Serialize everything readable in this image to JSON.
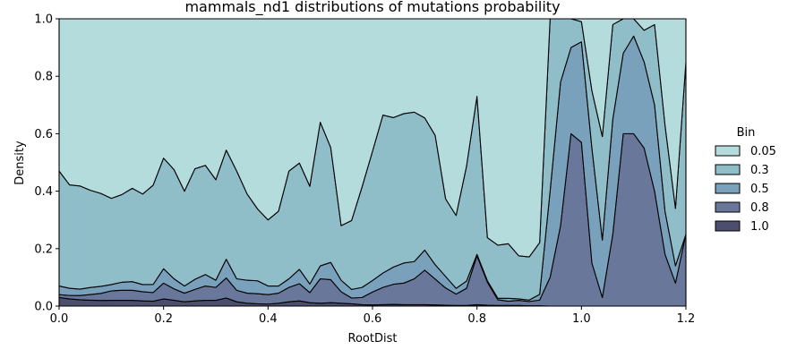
{
  "chart_data": {
    "type": "area",
    "stacked": "fill",
    "title": "mammals_nd1 distributions of mutations probability",
    "xlabel": "RootDist",
    "ylabel": "Density",
    "xlim": [
      0.0,
      1.2
    ],
    "ylim": [
      0.0,
      1.0
    ],
    "xticks": [
      "0.0",
      "0.2",
      "0.4",
      "0.6",
      "0.8",
      "1.0",
      "1.2"
    ],
    "yticks": [
      "0.0",
      "0.2",
      "0.4",
      "0.6",
      "0.8",
      "1.0"
    ],
    "grid": false,
    "legend": {
      "title": "Bin",
      "position": "right"
    },
    "x": [
      0.0,
      0.02,
      0.04,
      0.06,
      0.08,
      0.1,
      0.12,
      0.14,
      0.16,
      0.18,
      0.2,
      0.22,
      0.24,
      0.26,
      0.28,
      0.3,
      0.32,
      0.34,
      0.36,
      0.38,
      0.4,
      0.42,
      0.44,
      0.46,
      0.48,
      0.5,
      0.52,
      0.54,
      0.56,
      0.58,
      0.6,
      0.62,
      0.64,
      0.66,
      0.68,
      0.7,
      0.72,
      0.74,
      0.76,
      0.78,
      0.8,
      0.82,
      0.84,
      0.86,
      0.88,
      0.9,
      0.92,
      0.94,
      0.96,
      0.98,
      1.0,
      1.02,
      1.04,
      1.06,
      1.08,
      1.1,
      1.12,
      1.14,
      1.16,
      1.18,
      1.2
    ],
    "series": [
      {
        "name": "1.0",
        "color": "#4b4f6d",
        "values": [
          0.03,
          0.025,
          0.022,
          0.021,
          0.02,
          0.02,
          0.02,
          0.02,
          0.018,
          0.017,
          0.025,
          0.02,
          0.015,
          0.018,
          0.02,
          0.02,
          0.028,
          0.015,
          0.01,
          0.008,
          0.007,
          0.01,
          0.015,
          0.018,
          0.012,
          0.01,
          0.012,
          0.01,
          0.008,
          0.005,
          0.004,
          0.005,
          0.006,
          0.005,
          0.005,
          0.005,
          0.004,
          0.003,
          0.002,
          0.002,
          0.005,
          0.003,
          0.002,
          0.002,
          0.002,
          0.001,
          0.001,
          0.0,
          0.0,
          0.0,
          0.0,
          0.0,
          0.0,
          0.0,
          0.0,
          0.0,
          0.0,
          0.0,
          0.0,
          0.0,
          0.0
        ]
      },
      {
        "name": "0.8",
        "color": "#68779a",
        "values": [
          0.01,
          0.012,
          0.015,
          0.02,
          0.025,
          0.033,
          0.035,
          0.035,
          0.032,
          0.03,
          0.055,
          0.04,
          0.03,
          0.04,
          0.05,
          0.045,
          0.07,
          0.04,
          0.035,
          0.035,
          0.033,
          0.035,
          0.05,
          0.06,
          0.035,
          0.085,
          0.08,
          0.04,
          0.02,
          0.025,
          0.045,
          0.06,
          0.07,
          0.075,
          0.09,
          0.12,
          0.09,
          0.06,
          0.04,
          0.06,
          0.17,
          0.08,
          0.02,
          0.015,
          0.018,
          0.015,
          0.02,
          0.1,
          0.28,
          0.6,
          0.57,
          0.15,
          0.03,
          0.25,
          0.6,
          0.6,
          0.55,
          0.4,
          0.18,
          0.08,
          0.25
        ]
      },
      {
        "name": "0.5",
        "color": "#7aa1bc",
        "values": [
          0.03,
          0.025,
          0.022,
          0.025,
          0.025,
          0.022,
          0.028,
          0.03,
          0.025,
          0.028,
          0.05,
          0.035,
          0.025,
          0.035,
          0.04,
          0.025,
          0.065,
          0.04,
          0.045,
          0.045,
          0.03,
          0.025,
          0.03,
          0.05,
          0.03,
          0.045,
          0.06,
          0.04,
          0.03,
          0.035,
          0.04,
          0.05,
          0.06,
          0.07,
          0.06,
          0.07,
          0.05,
          0.04,
          0.02,
          0.025,
          0.005,
          0.005,
          0.005,
          0.01,
          0.005,
          0.005,
          0.02,
          0.3,
          0.5,
          0.3,
          0.35,
          0.4,
          0.2,
          0.4,
          0.28,
          0.34,
          0.3,
          0.3,
          0.15,
          0.06,
          0.0
        ]
      },
      {
        "name": "0.3",
        "color": "#8fbdc8",
        "values": [
          0.4,
          0.36,
          0.36,
          0.345,
          0.33,
          0.3,
          0.305,
          0.325,
          0.315,
          0.345,
          0.385,
          0.38,
          0.33,
          0.385,
          0.38,
          0.35,
          0.38,
          0.375,
          0.3,
          0.25,
          0.23,
          0.26,
          0.375,
          0.37,
          0.34,
          0.5,
          0.4,
          0.19,
          0.24,
          0.35,
          0.45,
          0.55,
          0.52,
          0.52,
          0.52,
          0.46,
          0.45,
          0.27,
          0.255,
          0.4,
          0.55,
          0.15,
          0.185,
          0.19,
          0.15,
          0.15,
          0.18,
          0.6,
          0.22,
          0.1,
          0.07,
          0.2,
          0.36,
          0.33,
          0.12,
          0.06,
          0.11,
          0.28,
          0.3,
          0.2,
          0.6
        ]
      },
      {
        "name": "0.05",
        "color": "#b4dcdd",
        "values": [
          0.53,
          0.578,
          0.583,
          0.609,
          0.62,
          0.625,
          0.612,
          0.59,
          0.61,
          0.578,
          0.485,
          0.525,
          0.6,
          0.522,
          0.51,
          0.56,
          0.457,
          0.53,
          0.61,
          0.662,
          0.7,
          0.67,
          0.53,
          0.502,
          0.583,
          0.36,
          0.448,
          0.72,
          0.702,
          0.585,
          0.461,
          0.335,
          0.344,
          0.33,
          0.325,
          0.345,
          0.406,
          0.627,
          0.688,
          0.513,
          0.27,
          0.762,
          0.788,
          0.783,
          0.825,
          0.829,
          0.779,
          0.0,
          0.0,
          0.0,
          0.01,
          0.25,
          0.41,
          0.02,
          0.0,
          0.0,
          0.04,
          0.02,
          0.37,
          0.66,
          0.15
        ]
      }
    ]
  }
}
